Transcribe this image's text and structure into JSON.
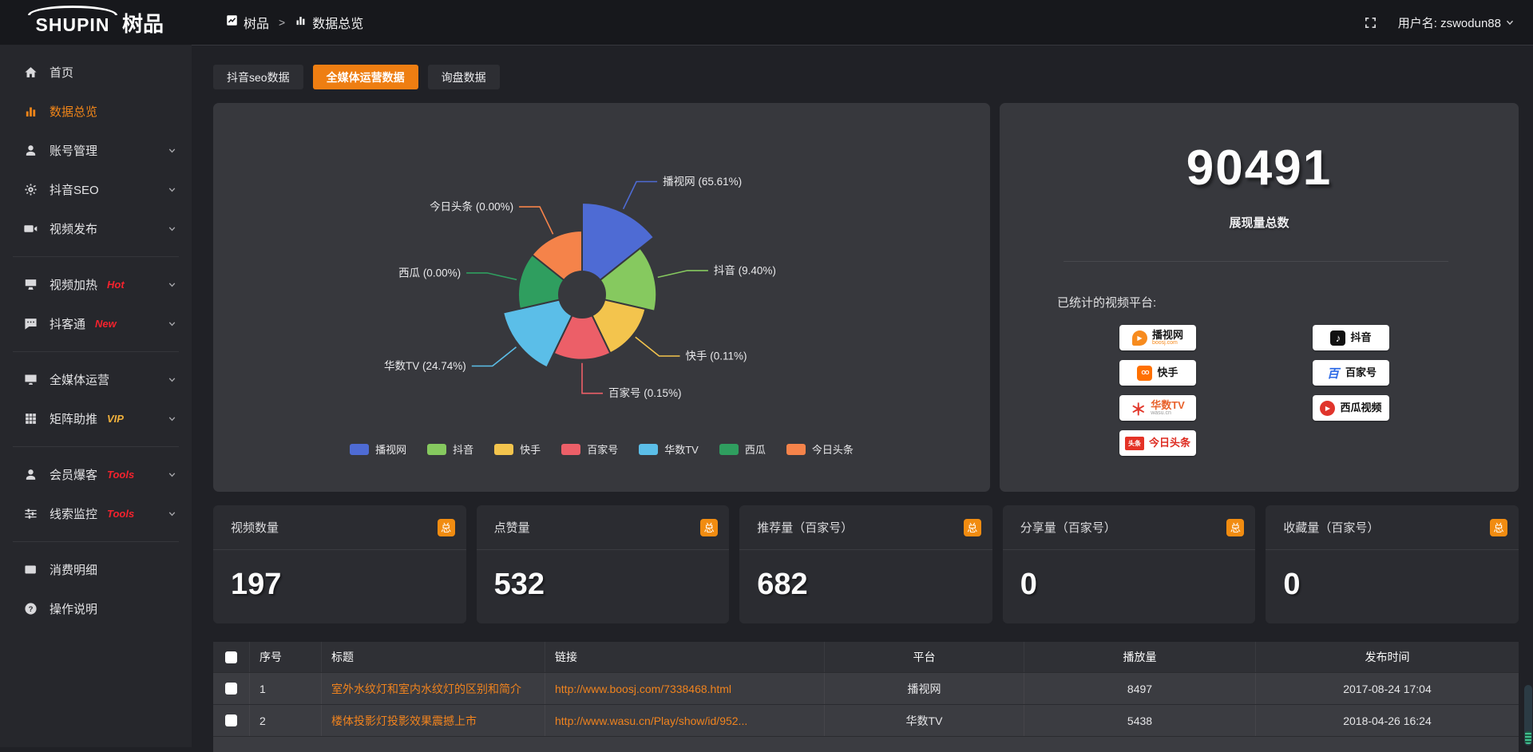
{
  "topbar": {
    "logo_en": "SHUPIN",
    "logo_cn": "树品",
    "breadcrumb": [
      {
        "key": "shupin",
        "label": "树品",
        "icon": "trend"
      },
      {
        "key": "data-overview",
        "label": "数据总览",
        "icon": "bars"
      }
    ],
    "separator": ">",
    "user_label": "用户名: zswodun88"
  },
  "sidebar": {
    "items": [
      {
        "key": "home",
        "label": "首页",
        "icon": "home",
        "chevron": false,
        "active": false
      },
      {
        "key": "data-overview",
        "label": "数据总览",
        "icon": "bars",
        "chevron": false,
        "active": true
      },
      {
        "key": "account-manage",
        "label": "账号管理",
        "icon": "user",
        "chevron": true,
        "active": false
      },
      {
        "key": "douyin-seo",
        "label": "抖音SEO",
        "icon": "gear",
        "chevron": true,
        "active": false
      },
      {
        "key": "video-publish",
        "label": "视频发布",
        "icon": "video",
        "chevron": true,
        "active": false
      },
      {
        "divider": true
      },
      {
        "key": "video-heat",
        "label": "视频加热",
        "icon": "screen",
        "tag": "Hot",
        "tag_color": "#F5222D",
        "chevron": true,
        "active": false
      },
      {
        "key": "douketong",
        "label": "抖客通",
        "icon": "chat",
        "tag": "New",
        "tag_color": "#F5222D",
        "chevron": true,
        "active": false
      },
      {
        "divider": true
      },
      {
        "key": "media-operation",
        "label": "全媒体运营",
        "icon": "monitor",
        "chevron": true,
        "active": false
      },
      {
        "key": "matrix-boost",
        "label": "矩阵助推",
        "icon": "grid",
        "tag": "VIP",
        "tag_color": "#F0B13C",
        "chevron": true,
        "active": false
      },
      {
        "divider": true
      },
      {
        "key": "member-baoke",
        "label": "会员爆客",
        "icon": "user",
        "tag": "Tools",
        "tag_color": "#F5222D",
        "chevron": true,
        "active": false
      },
      {
        "key": "clue-monitor",
        "label": "线索监控",
        "icon": "sliders",
        "tag": "Tools",
        "tag_color": "#F5222D",
        "chevron": true,
        "active": false
      },
      {
        "divider": true
      },
      {
        "key": "consume-detail",
        "label": "消费明细",
        "icon": "wallet",
        "chevron": false,
        "active": false
      },
      {
        "key": "operation-guide",
        "label": "操作说明",
        "icon": "question",
        "chevron": false,
        "active": false
      }
    ]
  },
  "tabs": [
    {
      "key": "douyin-seo-data",
      "label": "抖音seo数据",
      "active": false
    },
    {
      "key": "media-operation-data",
      "label": "全媒体运营数据",
      "active": true
    },
    {
      "key": "inquiry-data",
      "label": "询盘数据",
      "active": false
    }
  ],
  "chart_data": {
    "type": "pie",
    "subtype": "nightingale-rose",
    "title": "",
    "label_format": "{name} ({percent}%)",
    "legend_position": "bottom",
    "series": [
      {
        "name": "播视网",
        "percent": 65.61,
        "color": "#4E6BD4"
      },
      {
        "name": "抖音",
        "percent": 9.4,
        "color": "#86C95F"
      },
      {
        "name": "快手",
        "percent": 0.11,
        "color": "#F3C44D"
      },
      {
        "name": "百家号",
        "percent": 0.15,
        "color": "#EC5F68"
      },
      {
        "name": "华数TV",
        "percent": 24.74,
        "color": "#5BBEE8"
      },
      {
        "name": "西瓜",
        "percent": 0.0,
        "color": "#2F9E5F"
      },
      {
        "name": "今日头条",
        "percent": 0.0,
        "color": "#F5834A"
      }
    ],
    "legend": [
      "播视网",
      "抖音",
      "快手",
      "百家号",
      "华数TV",
      "西瓜",
      "今日头条"
    ]
  },
  "summary": {
    "total": "90491",
    "total_label": "展现量总数",
    "platforms_label": "已统计的视频平台:",
    "platform_columns": [
      [
        {
          "name": "播视网",
          "sub": "boosj.com",
          "icon": "boosj",
          "icon_bg": "#F78B1E",
          "icon_color": "#FFFFFF",
          "name_color": "#1A1A1A",
          "sub_color": "#F78B1E"
        },
        {
          "name": "快手",
          "icon": "kuaishou",
          "icon_bg": "#FF7000",
          "icon_color": "#FFFFFF",
          "name_color": "#1A1A1A"
        },
        {
          "name": "华数TV",
          "sub": "wasu.cn",
          "icon": "wasu",
          "icon_bg": "",
          "icon_color": "#E23A2E",
          "name_color": "#E8622C",
          "sub_color": "#9A9A9A"
        },
        {
          "name": "今日头条",
          "icon": "toutiao",
          "icon_bg": "#E43226",
          "icon_color": "#FFFFFF",
          "name_color": "#DD2B20"
        }
      ],
      [
        {
          "name": "抖音",
          "icon": "douyin",
          "icon_bg": "#111111",
          "icon_color": "#FFFFFF",
          "name_color": "#111111"
        },
        {
          "name": "百家号",
          "icon": "baijiahao",
          "icon_bg": "",
          "icon_color": "#2E6BE6",
          "name_color": "#111111"
        },
        {
          "name": "西瓜视频",
          "icon": "xigua",
          "icon_bg": "#E0342B",
          "icon_color": "#FFFFFF",
          "name_color": "#111111"
        }
      ]
    ]
  },
  "stat_cards": [
    {
      "key": "video-count",
      "title": "视频数量",
      "badge": "总",
      "value": "197"
    },
    {
      "key": "like-count",
      "title": "点赞量",
      "badge": "总",
      "value": "532"
    },
    {
      "key": "recommend-count",
      "title": "推荐量（百家号）",
      "badge": "总",
      "value": "682"
    },
    {
      "key": "share-count",
      "title": "分享量（百家号）",
      "badge": "总",
      "value": "0"
    },
    {
      "key": "favorite-count",
      "title": "收藏量（百家号）",
      "badge": "总",
      "value": "0"
    }
  ],
  "table": {
    "headers": [
      "序号",
      "标题",
      "链接",
      "平台",
      "播放量",
      "发布时间"
    ],
    "rows": [
      {
        "index": "1",
        "title": "室外水纹灯和室内水纹灯的区别和简介",
        "link": "http://www.boosj.com/7338468.html",
        "platform": "播视网",
        "plays": "8497",
        "publish_time": "2017-08-24 17:04"
      },
      {
        "index": "2",
        "title": "楼体投影灯投影效果震撼上市",
        "link": "http://www.wasu.cn/Play/show/id/952...",
        "platform": "华数TV",
        "plays": "5438",
        "publish_time": "2018-04-26 16:24"
      }
    ]
  },
  "colors": {
    "accent_orange": "#EE7E12",
    "active_menu": "#F08519",
    "link_orange": "#F0831E",
    "badge_orange": "#F18C11",
    "panel_bg": "#37383D",
    "tag_red": "#F5222D",
    "tag_gold": "#F0B13C"
  }
}
